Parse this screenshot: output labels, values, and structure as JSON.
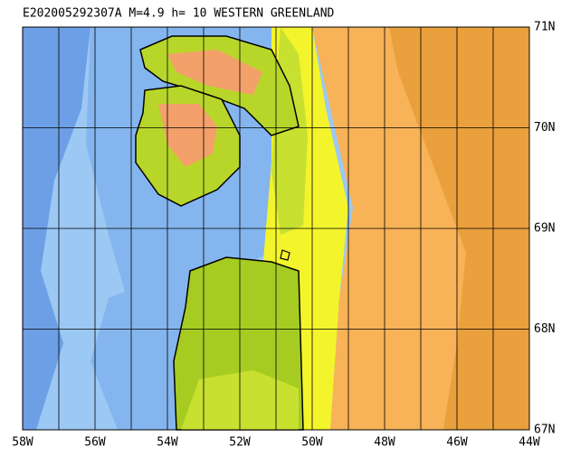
{
  "title": "E202005292307A M=4.9 h= 10 WESTERN GREENLAND",
  "lon_labels": [
    "58W",
    "56W",
    "54W",
    "52W",
    "50W",
    "48W",
    "46W",
    "44W"
  ],
  "lat_labels": [
    "67N",
    "68N",
    "69N",
    "70N",
    "71N"
  ]
}
